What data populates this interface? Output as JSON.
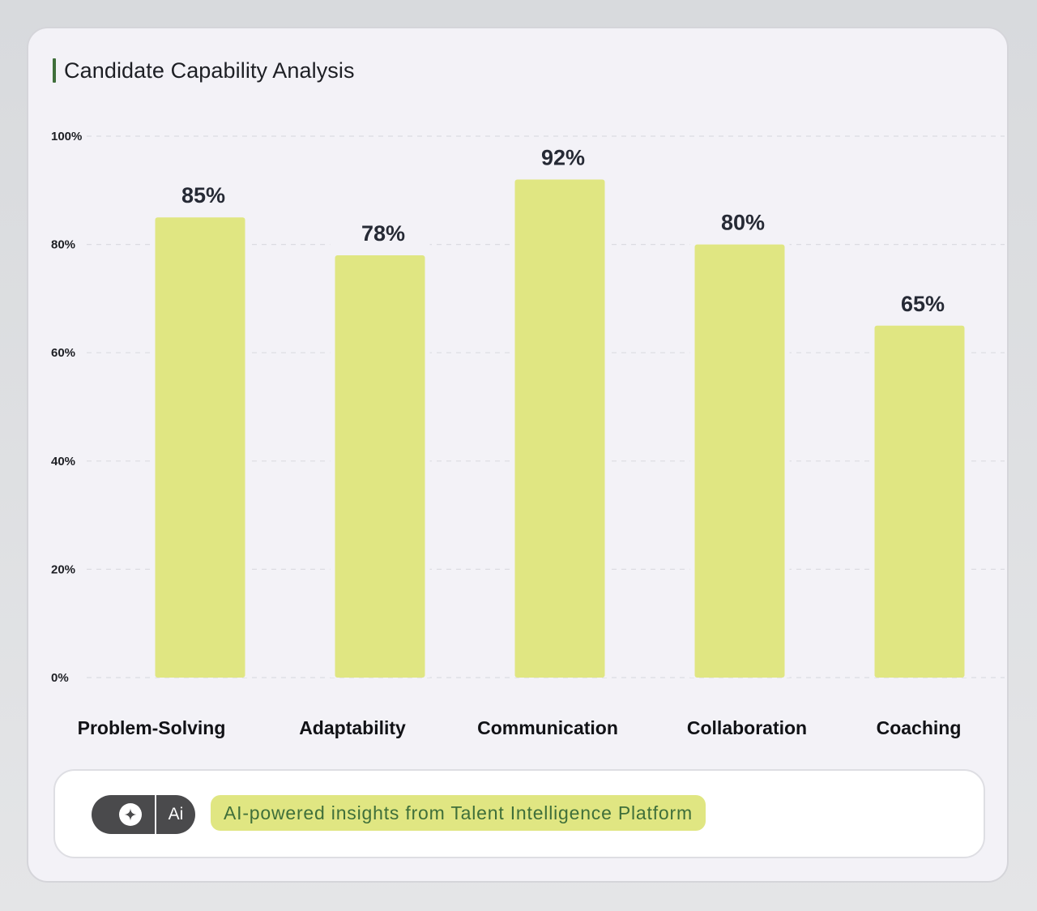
{
  "header": {
    "title": "Candidate Capability Analysis"
  },
  "colors": {
    "accent": "#3f6f3a",
    "bar": "#e0e682",
    "card_background": "#f3f2f7",
    "ai_pill": "#4a4a4c"
  },
  "chart_data": {
    "type": "bar",
    "title": "Candidate Capability Analysis",
    "categories": [
      "Problem-Solving",
      "Adaptability",
      "Communication",
      "Collaboration",
      "Coaching"
    ],
    "values": [
      85,
      78,
      92,
      80,
      65
    ],
    "value_labels": [
      "85%",
      "78%",
      "92%",
      "80%",
      "65%"
    ],
    "y_ticks": [
      {
        "value": 100,
        "label": "100%"
      },
      {
        "value": 80,
        "label": "80%"
      },
      {
        "value": 60,
        "label": "60%"
      },
      {
        "value": 40,
        "label": "40%"
      },
      {
        "value": 20,
        "label": "20%"
      },
      {
        "value": 0,
        "label": "0%"
      }
    ],
    "ylim": [
      0,
      100
    ],
    "grid": true,
    "gridline_style": "dashed",
    "legend": "none",
    "xlabel": "",
    "ylabel": ""
  },
  "footer": {
    "ai_badge_label": "Ai",
    "ai_icon": "sparkle-icon",
    "insight_text": "AI-powered insights from Talent Intelligence Platform"
  }
}
